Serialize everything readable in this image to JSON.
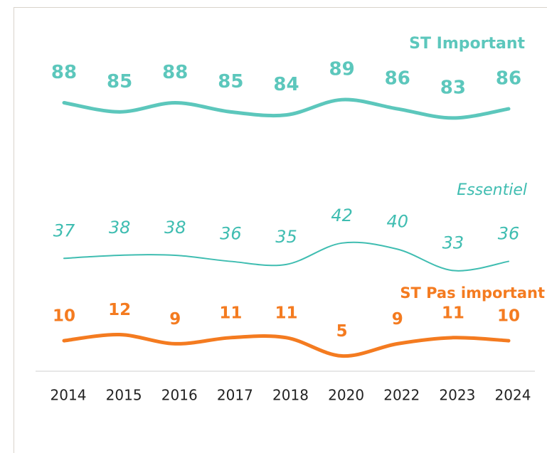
{
  "chart_data": {
    "type": "line",
    "categories": [
      "2014",
      "2015",
      "2016",
      "2017",
      "2018",
      "2020",
      "2022",
      "2023",
      "2024"
    ],
    "series": [
      {
        "name": "ST Important",
        "color": "#5cc7bc",
        "values": [
          88,
          85,
          88,
          85,
          84,
          89,
          86,
          83,
          86
        ]
      },
      {
        "name": "Essentiel",
        "color": "#3fbdb1",
        "values": [
          37,
          38,
          38,
          36,
          35,
          42,
          40,
          33,
          36
        ]
      },
      {
        "name": "ST Pas important",
        "color": "#f47b20",
        "values": [
          10,
          12,
          9,
          11,
          11,
          5,
          9,
          11,
          10
        ]
      }
    ],
    "ylim": [
      0,
      100
    ]
  }
}
